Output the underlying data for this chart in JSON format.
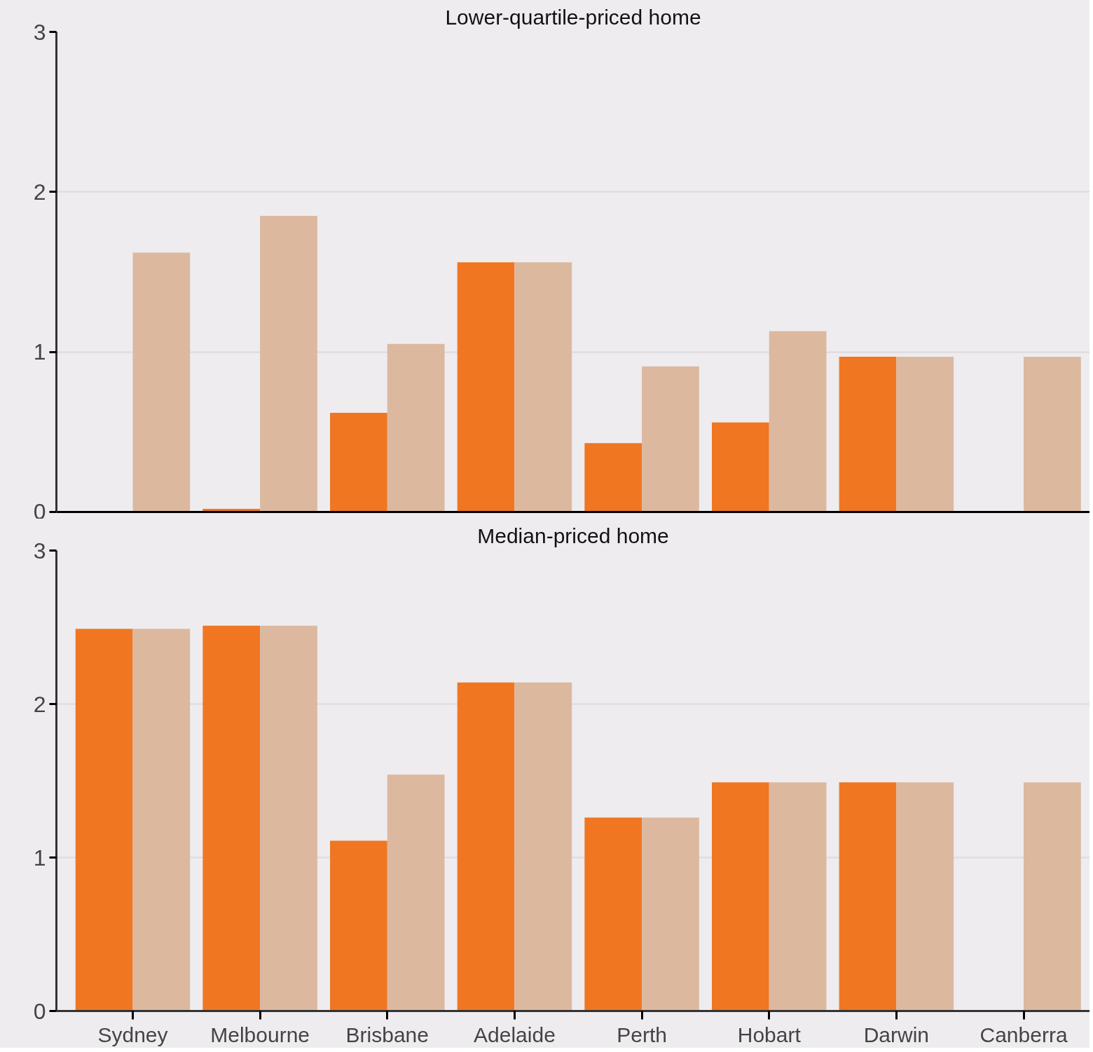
{
  "chart_data": [
    {
      "type": "bar",
      "title": "Lower-quartile-priced home",
      "categories": [
        null,
        null,
        null,
        null,
        null,
        null,
        null,
        null
      ],
      "series": [
        {
          "color": "#f07622",
          "values": [
            null,
            0.02,
            0.62,
            1.56,
            0.43,
            0.56,
            0.97,
            null
          ]
        },
        {
          "color": "#dcb89f",
          "values": [
            1.62,
            1.85,
            1.05,
            1.56,
            0.91,
            1.13,
            0.97,
            0.97
          ]
        }
      ],
      "ylim": [
        0,
        3
      ],
      "yticks": [
        0,
        1,
        2,
        3
      ],
      "grid": "y",
      "tick_labels": "y"
    },
    {
      "type": "bar",
      "title": "Median-priced home",
      "categories": [
        "Sydney",
        "Melbourne",
        "Brisbane",
        "Adelaide",
        "Perth",
        "Hobart",
        "Darwin",
        "Canberra"
      ],
      "series": [
        {
          "color": "#f07622",
          "values": [
            2.49,
            2.51,
            1.11,
            2.14,
            1.26,
            1.49,
            1.49,
            null
          ]
        },
        {
          "color": "#dcb89f",
          "values": [
            2.49,
            2.51,
            1.54,
            2.14,
            1.26,
            1.49,
            1.49,
            1.49
          ]
        }
      ],
      "ylim": [
        0,
        3
      ],
      "yticks": [
        0,
        1,
        2,
        3
      ],
      "grid": "y"
    }
  ]
}
